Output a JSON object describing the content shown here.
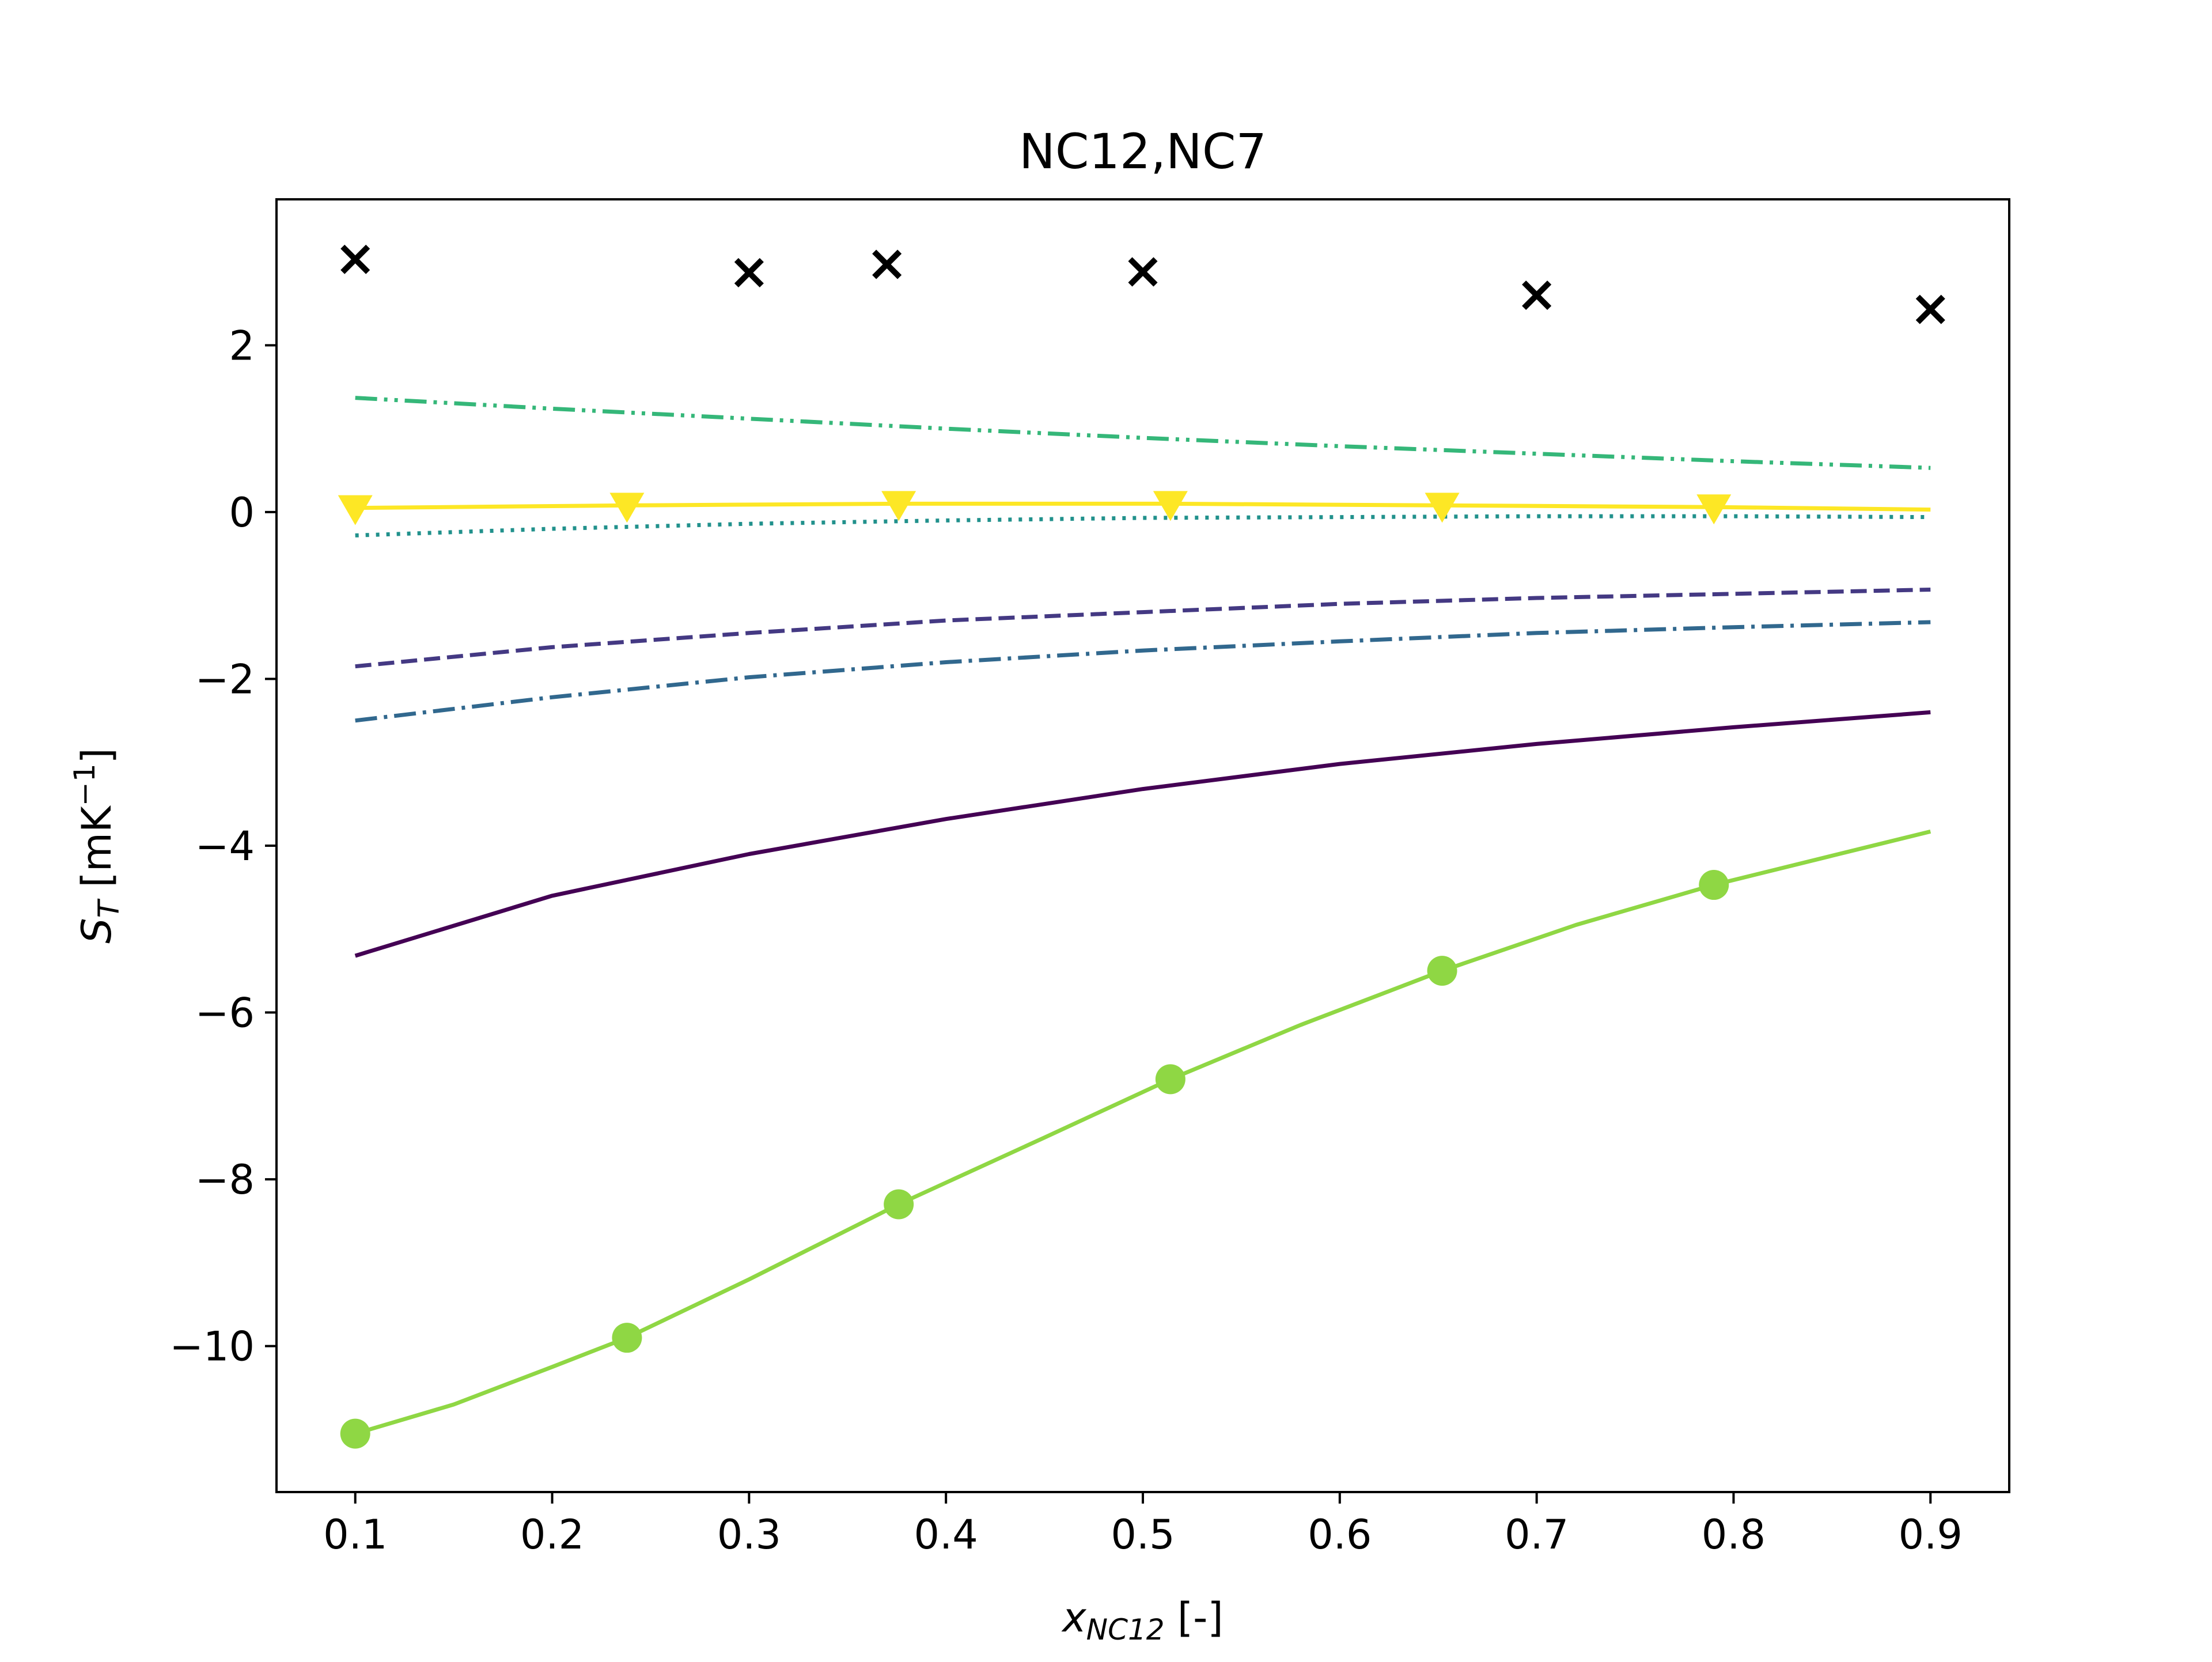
{
  "chart_data": {
    "type": "line",
    "title": "NC12,NC7",
    "xlabel": {
      "main": "x",
      "sub": "NC12",
      "suffix": " [-]"
    },
    "ylabel": {
      "main": "S",
      "sub": "T",
      "unit_prefix": " [mK",
      "unit_exp": "−1",
      "unit_suffix": "]"
    },
    "xlim": [
      0.06,
      0.94
    ],
    "ylim": [
      -11.75,
      3.75
    ],
    "xticks": [
      0.1,
      0.2,
      0.3,
      0.4,
      0.5,
      0.6,
      0.7,
      0.8,
      0.9
    ],
    "xtick_labels": [
      "0.1",
      "0.2",
      "0.3",
      "0.4",
      "0.5",
      "0.6",
      "0.7",
      "0.8",
      "0.9"
    ],
    "yticks": [
      -10,
      -8,
      -6,
      -4,
      -2,
      0,
      2
    ],
    "ytick_labels": [
      "−10",
      "−8",
      "−6",
      "−4",
      "−2",
      "0",
      "2"
    ],
    "grid": false,
    "series": [
      {
        "color": "#440154",
        "linestyle": "solid",
        "marker": "none",
        "x": [
          0.1,
          0.2,
          0.3,
          0.4,
          0.5,
          0.6,
          0.7,
          0.8,
          0.9
        ],
        "y": [
          -5.32,
          -4.6,
          -4.1,
          -3.68,
          -3.32,
          -3.02,
          -2.78,
          -2.58,
          -2.4
        ]
      },
      {
        "color": "#443983",
        "linestyle": "dashed",
        "marker": "none",
        "x": [
          0.1,
          0.2,
          0.3,
          0.4,
          0.5,
          0.6,
          0.7,
          0.8,
          0.9
        ],
        "y": [
          -1.85,
          -1.62,
          -1.45,
          -1.3,
          -1.2,
          -1.1,
          -1.03,
          -0.98,
          -0.93
        ]
      },
      {
        "color": "#31688e",
        "linestyle": "dashdot",
        "marker": "none",
        "x": [
          0.1,
          0.2,
          0.3,
          0.4,
          0.5,
          0.6,
          0.7,
          0.8,
          0.9
        ],
        "y": [
          -2.5,
          -2.22,
          -1.98,
          -1.8,
          -1.66,
          -1.55,
          -1.45,
          -1.38,
          -1.32
        ]
      },
      {
        "color": "#21918c",
        "linestyle": "dotted",
        "marker": "none",
        "x": [
          0.1,
          0.2,
          0.3,
          0.4,
          0.5,
          0.6,
          0.7,
          0.8,
          0.9
        ],
        "y": [
          -0.28,
          -0.2,
          -0.14,
          -0.1,
          -0.07,
          -0.06,
          -0.05,
          -0.05,
          -0.06
        ]
      },
      {
        "color": "#35b779",
        "linestyle": "dashdotdot",
        "marker": "none",
        "x": [
          0.1,
          0.2,
          0.3,
          0.4,
          0.5,
          0.6,
          0.7,
          0.8,
          0.9
        ],
        "y": [
          1.37,
          1.24,
          1.12,
          1.0,
          0.89,
          0.79,
          0.7,
          0.61,
          0.53
        ]
      },
      {
        "color": "#8fd744",
        "linestyle": "solid",
        "marker": "circle",
        "x": [
          0.1,
          0.15,
          0.2,
          0.238,
          0.3,
          0.376,
          0.45,
          0.514,
          0.58,
          0.652,
          0.72,
          0.79,
          0.85,
          0.9
        ],
        "y": [
          -11.05,
          -10.7,
          -10.25,
          -9.9,
          -9.2,
          -8.3,
          -7.5,
          -6.8,
          -6.15,
          -5.5,
          -4.95,
          -4.47,
          -4.12,
          -3.83
        ],
        "marker_x": [
          0.1,
          0.238,
          0.376,
          0.514,
          0.652,
          0.79
        ],
        "marker_y": [
          -11.05,
          -9.9,
          -8.3,
          -6.8,
          -5.5,
          -4.47
        ]
      },
      {
        "color": "#fde725",
        "linestyle": "solid",
        "marker": "triangle-down",
        "x": [
          0.1,
          0.238,
          0.376,
          0.514,
          0.652,
          0.79,
          0.9
        ],
        "y": [
          0.05,
          0.08,
          0.1,
          0.1,
          0.08,
          0.06,
          0.03
        ],
        "marker_x": [
          0.1,
          0.238,
          0.376,
          0.514,
          0.652,
          0.79
        ],
        "marker_y": [
          0.05,
          0.08,
          0.1,
          0.1,
          0.08,
          0.06
        ]
      },
      {
        "color": "#000000",
        "linestyle": "none",
        "marker": "x",
        "x": [
          0.1,
          0.3,
          0.37,
          0.5,
          0.7,
          0.9
        ],
        "y": [
          3.03,
          2.87,
          2.97,
          2.88,
          2.6,
          2.43
        ]
      }
    ]
  }
}
